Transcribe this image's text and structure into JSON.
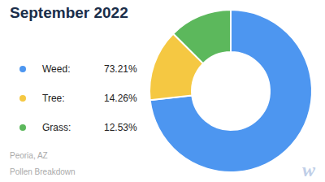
{
  "chart_data": {
    "type": "donut",
    "title": "September 2022",
    "subtitle": [
      "Peoria, AZ",
      "Pollen Breakdown"
    ],
    "categories": [
      "Weed:",
      "Tree:",
      "Grass:"
    ],
    "values": [
      73.21,
      14.26,
      12.53
    ],
    "value_labels": [
      "73.21%",
      "14.26%",
      "12.53%"
    ],
    "colors": [
      "#4d96f0",
      "#f5c842",
      "#5cb85c"
    ],
    "legend": "left",
    "annotations": [
      "w"
    ]
  }
}
